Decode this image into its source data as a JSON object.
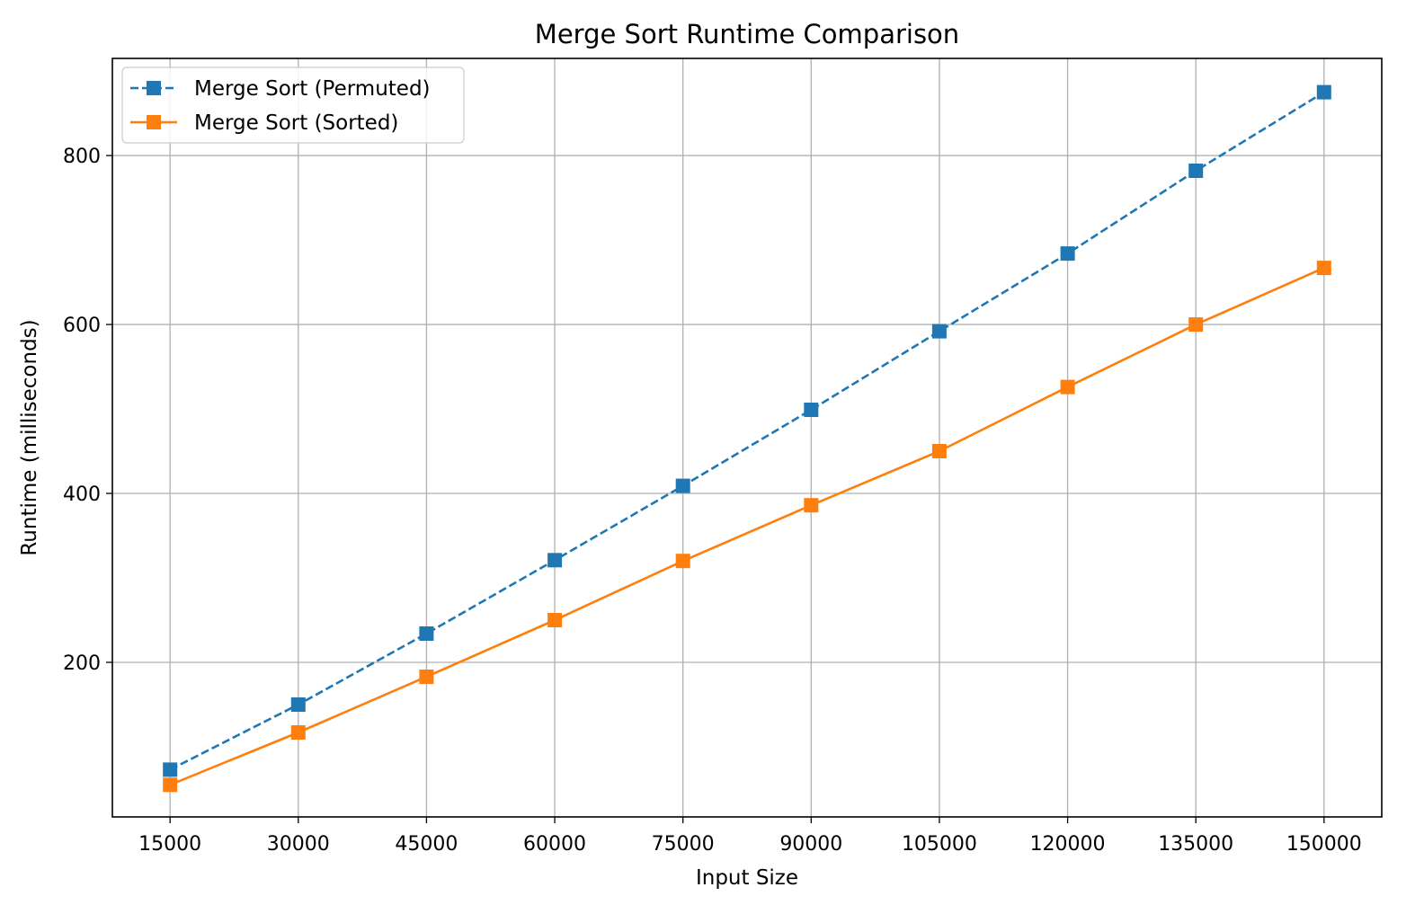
{
  "chart_data": {
    "type": "line",
    "title": "Merge Sort Runtime Comparison",
    "xlabel": "Input Size",
    "ylabel": "Runtime (milliseconds)",
    "x": [
      15000,
      30000,
      45000,
      60000,
      75000,
      90000,
      105000,
      120000,
      135000,
      150000
    ],
    "x_tick_labels": [
      "15000",
      "30000",
      "45000",
      "60000",
      "75000",
      "90000",
      "105000",
      "120000",
      "135000",
      "150000"
    ],
    "y_ticks": [
      200,
      400,
      600,
      800
    ],
    "y_tick_labels": [
      "200",
      "400",
      "600",
      "800"
    ],
    "xlim": [
      8250,
      156750
    ],
    "ylim": [
      17,
      915
    ],
    "grid": true,
    "legend_position": "top-left",
    "series": [
      {
        "name": "Merge Sort (Permuted)",
        "color": "#1f77b4",
        "line_style": "dashed",
        "marker": "square",
        "values": [
          73,
          150,
          234,
          321,
          409,
          499,
          592,
          684,
          782,
          875
        ]
      },
      {
        "name": "Merge Sort (Sorted)",
        "color": "#ff7f0e",
        "line_style": "solid",
        "marker": "square",
        "values": [
          55,
          117,
          183,
          250,
          320,
          386,
          450,
          526,
          600,
          667
        ]
      }
    ]
  }
}
